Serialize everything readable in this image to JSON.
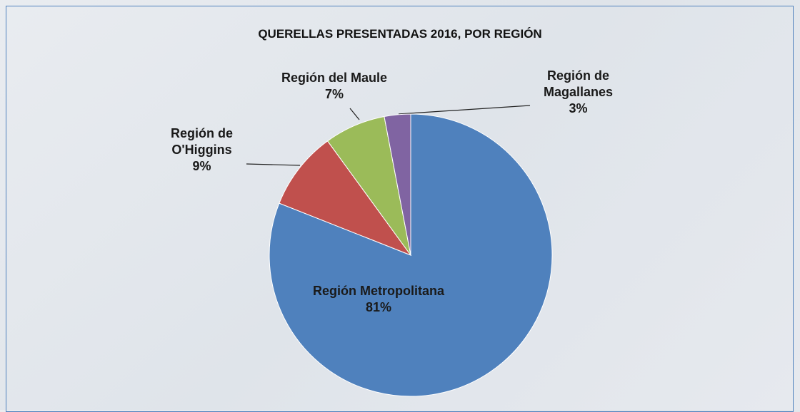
{
  "chart_data": {
    "type": "pie",
    "title": "QUERELLAS PRESENTADAS 2016, POR REGIÓN",
    "categories": [
      "Región Metropolitana",
      "Región de O'Higgins",
      "Región del Maule",
      "Región de Magallanes"
    ],
    "values": [
      81,
      9,
      7,
      3
    ],
    "value_labels": [
      "81%",
      "9%",
      "7%",
      "3%"
    ],
    "colors": [
      "#4f81bd",
      "#c0504d",
      "#9bbb59",
      "#8064a2"
    ]
  }
}
